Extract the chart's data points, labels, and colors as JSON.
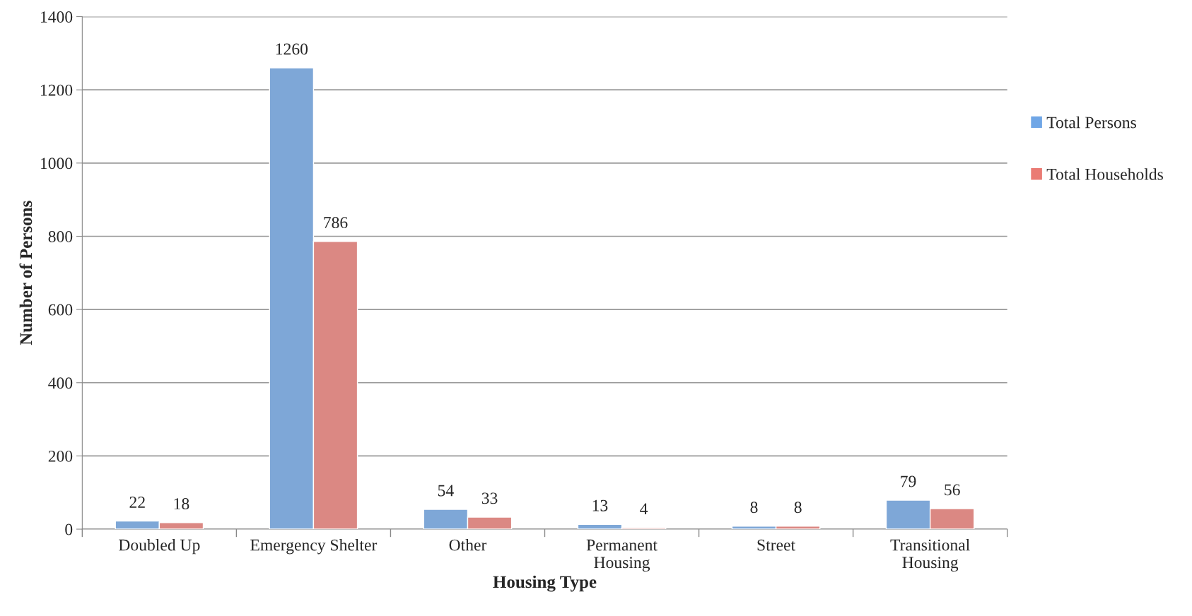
{
  "chart_data": {
    "type": "bar",
    "xlabel": "Housing Type",
    "ylabel": "Number of Persons",
    "categories": [
      "Doubled Up",
      "Emergency Shelter",
      "Other",
      "Permanent\nHousing",
      "Street",
      "Transitional\nHousing"
    ],
    "series": [
      {
        "name": "Total Persons",
        "color": "#6fa6e6",
        "values": [
          22,
          1260,
          54,
          13,
          8,
          79
        ]
      },
      {
        "name": "Total Households",
        "color": "#ea7b74",
        "values": [
          18,
          786,
          33,
          4,
          8,
          56
        ]
      }
    ],
    "ylim": [
      0,
      1400
    ],
    "yticks": [
      0,
      200,
      400,
      600,
      800,
      1000,
      1200,
      1400
    ],
    "grid": "y",
    "legend": "right",
    "data_labels": true
  }
}
